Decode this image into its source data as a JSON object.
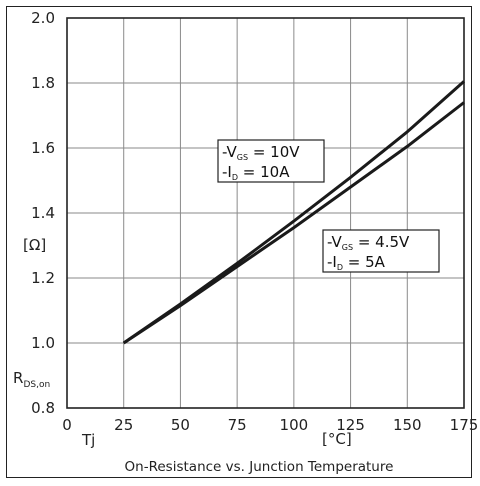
{
  "chart_data": {
    "type": "line",
    "title": "On-Resistance vs. Junction Temperature",
    "xlabel": "Tj",
    "xunit": "[°C]",
    "ylabel_main": "R",
    "ylabel_sub": "DS,on",
    "yunit": "[Ω]",
    "xlim": [
      0,
      175
    ],
    "ylim": [
      0.8,
      2.0
    ],
    "xticks": [
      "0",
      "25",
      "50",
      "75",
      "100",
      "125",
      "150",
      "175"
    ],
    "yticks": [
      "0.8",
      "1.0",
      "1.2",
      "1.4",
      "1.6",
      "1.8",
      "2.0"
    ],
    "grid": true,
    "series": [
      {
        "label_lines": [
          {
            "prefix": "-V",
            "sub": "GS",
            "suffix": " = 10V"
          },
          {
            "prefix": "-I",
            "sub": "D",
            "suffix": " = 10A"
          }
        ],
        "x": [
          25,
          50,
          75,
          100,
          125,
          150,
          175
        ],
        "y": [
          1.0,
          1.12,
          1.245,
          1.375,
          1.51,
          1.65,
          1.805
        ]
      },
      {
        "label_lines": [
          {
            "prefix": "-V",
            "sub": "GS",
            "suffix": " = 4.5V"
          },
          {
            "prefix": "-I",
            "sub": "D",
            "suffix": " = 5A"
          }
        ],
        "x": [
          25,
          50,
          75,
          100,
          125,
          150,
          175
        ],
        "y": [
          1.0,
          1.115,
          1.235,
          1.355,
          1.48,
          1.605,
          1.74
        ]
      }
    ]
  }
}
